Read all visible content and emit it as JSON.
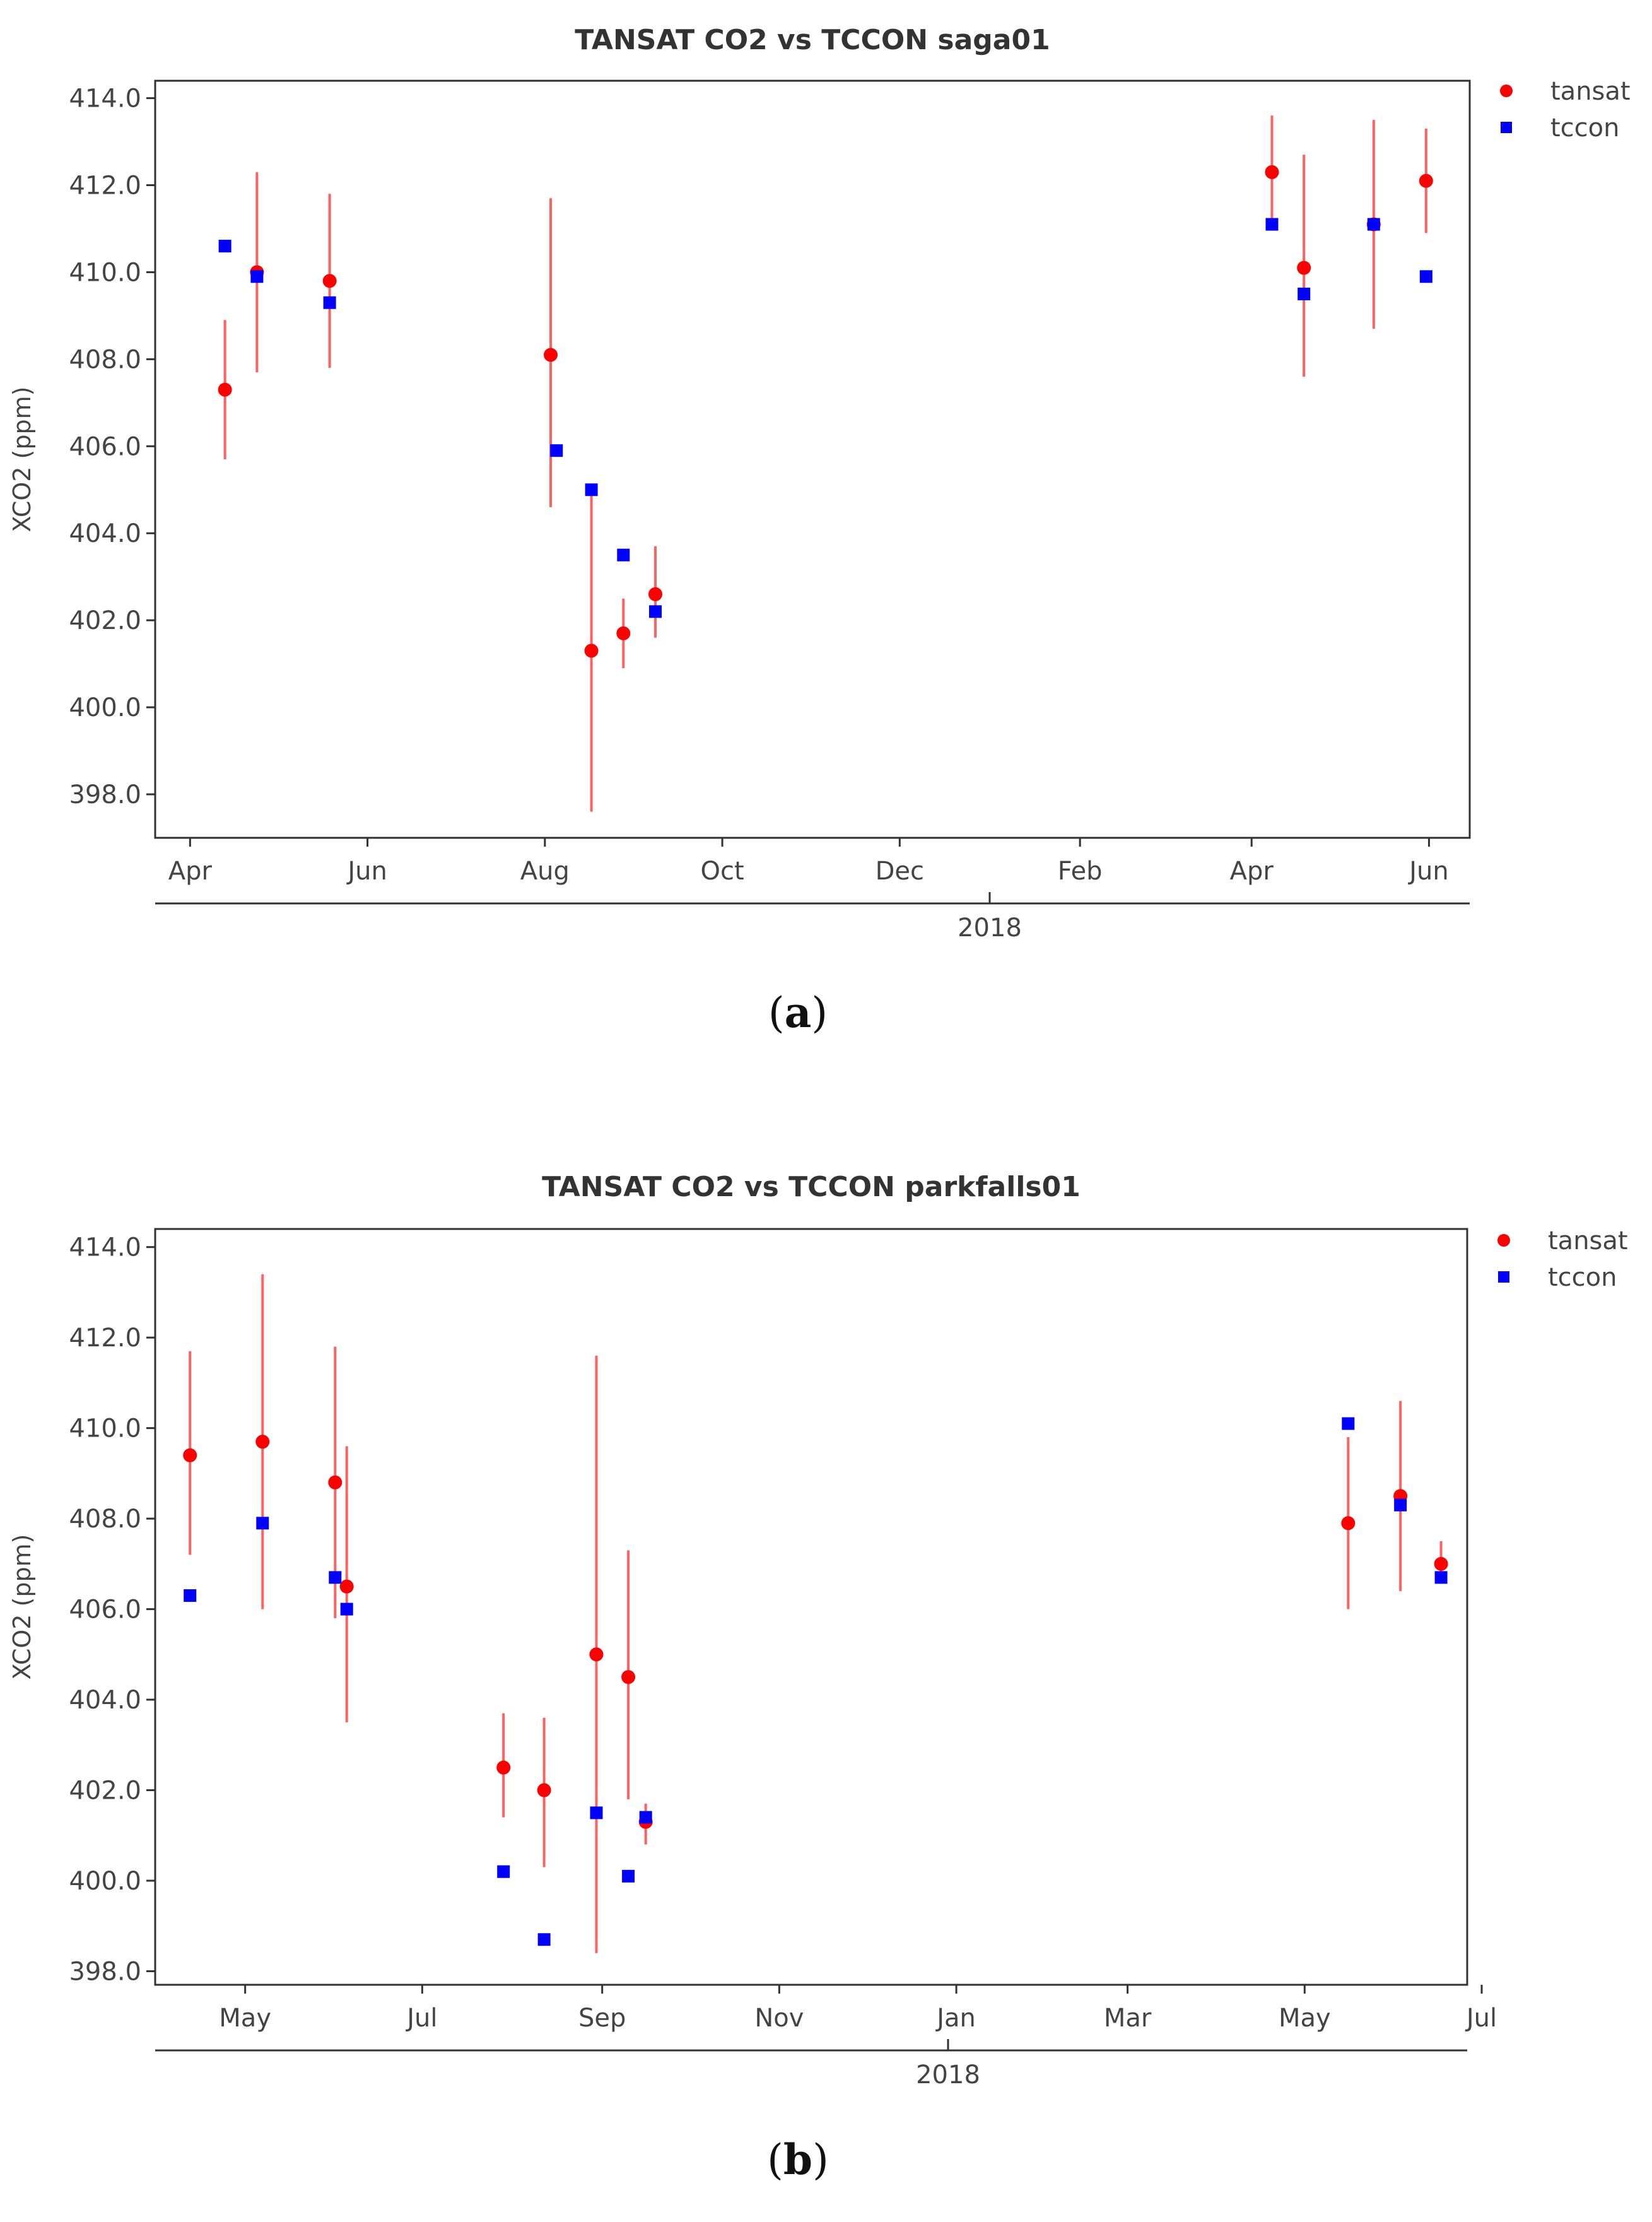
{
  "chart_data": [
    {
      "type": "scatter",
      "title": "TANSAT CO2 vs TCCON saga01",
      "ylabel": "XCO2 (ppm)",
      "xlabel": "2018",
      "ylim": [
        397.0,
        414.4
      ],
      "yticks": [
        398.0,
        400.0,
        402.0,
        404.0,
        406.0,
        408.0,
        410.0,
        412.0,
        414.0
      ],
      "ytick_labels": [
        "398.0",
        "400.0",
        "402.0",
        "404.0",
        "406.0",
        "408.0",
        "410.0",
        "412.0",
        "414.0"
      ],
      "xlim_days": [
        -12,
        440
      ],
      "xticks_days": [
        0,
        61,
        122,
        183,
        244,
        306,
        365,
        426
      ],
      "xtick_labels": [
        "Apr",
        "Jun",
        "Aug",
        "Oct",
        "Dec",
        "Feb",
        "Apr",
        "Jun"
      ],
      "x_reference": "2017-04-01 (day 0)",
      "legend": [
        "tansat",
        "tccon"
      ],
      "caption": "a",
      "series": [
        {
          "name": "tansat",
          "color": "#ff0000",
          "marker": "circle",
          "x_days": [
            12,
            23,
            48,
            124,
            138,
            149,
            160,
            372,
            383,
            407,
            425
          ],
          "values": [
            407.3,
            410.0,
            409.8,
            408.1,
            401.3,
            401.7,
            402.6,
            412.3,
            410.1,
            411.1,
            412.1
          ],
          "err_low": [
            405.7,
            407.7,
            407.8,
            404.6,
            397.6,
            400.9,
            401.6,
            411.0,
            407.6,
            408.7,
            410.9
          ],
          "err_high": [
            408.9,
            412.3,
            411.8,
            411.7,
            405.1,
            402.5,
            403.7,
            413.6,
            412.7,
            413.5,
            413.3
          ]
        },
        {
          "name": "tccon",
          "color": "#0000ff",
          "marker": "square",
          "x_days": [
            12,
            23,
            48,
            126,
            138,
            149,
            160,
            372,
            383,
            407,
            425
          ],
          "values": [
            410.6,
            409.9,
            409.3,
            405.9,
            405.0,
            403.5,
            402.2,
            411.1,
            409.5,
            411.1,
            409.9
          ]
        }
      ]
    },
    {
      "type": "scatter",
      "title": "TANSAT CO2 vs TCCON parkfalls01",
      "ylabel": "XCO2 (ppm)",
      "xlabel": "2018",
      "ylim": [
        397.7,
        414.4
      ],
      "yticks": [
        398.0,
        400.0,
        402.0,
        404.0,
        406.0,
        408.0,
        410.0,
        412.0,
        414.0
      ],
      "ytick_labels": [
        "398.0",
        "400.0",
        "402.0",
        "404.0",
        "406.0",
        "408.0",
        "410.0",
        "412.0",
        "414.0"
      ],
      "xlim_days": [
        -12,
        440
      ],
      "xticks_days": [
        19,
        80,
        142,
        203,
        264,
        323,
        384,
        445
      ],
      "xtick_labels": [
        "May",
        "Jul",
        "Sep",
        "Nov",
        "Jan",
        "Mar",
        "May",
        "Jul"
      ],
      "x_reference": "2017-04-12 (day 0)",
      "legend": [
        "tansat",
        "tccon"
      ],
      "caption": "b",
      "series": [
        {
          "name": "tansat",
          "color": "#ff0000",
          "marker": "circle",
          "x_days": [
            0,
            25,
            50,
            54,
            108,
            122,
            140,
            151,
            157,
            399,
            417,
            431
          ],
          "values": [
            409.4,
            409.7,
            408.8,
            406.5,
            402.5,
            402.0,
            405.0,
            404.5,
            401.3,
            407.9,
            408.5,
            407.0
          ],
          "err_low": [
            407.2,
            406.0,
            405.8,
            403.5,
            401.4,
            400.3,
            398.4,
            401.8,
            400.8,
            406.0,
            406.4,
            406.6
          ],
          "err_high": [
            411.7,
            413.4,
            411.8,
            409.6,
            403.7,
            403.6,
            411.6,
            407.3,
            401.7,
            409.8,
            410.6,
            407.5
          ]
        },
        {
          "name": "tccon",
          "color": "#0000ff",
          "marker": "square",
          "x_days": [
            0,
            25,
            50,
            54,
            108,
            122,
            140,
            151,
            157,
            399,
            417,
            431
          ],
          "values": [
            406.3,
            407.9,
            406.7,
            406.0,
            400.2,
            398.7,
            401.5,
            400.1,
            401.4,
            410.1,
            408.3,
            406.7
          ]
        }
      ]
    }
  ]
}
